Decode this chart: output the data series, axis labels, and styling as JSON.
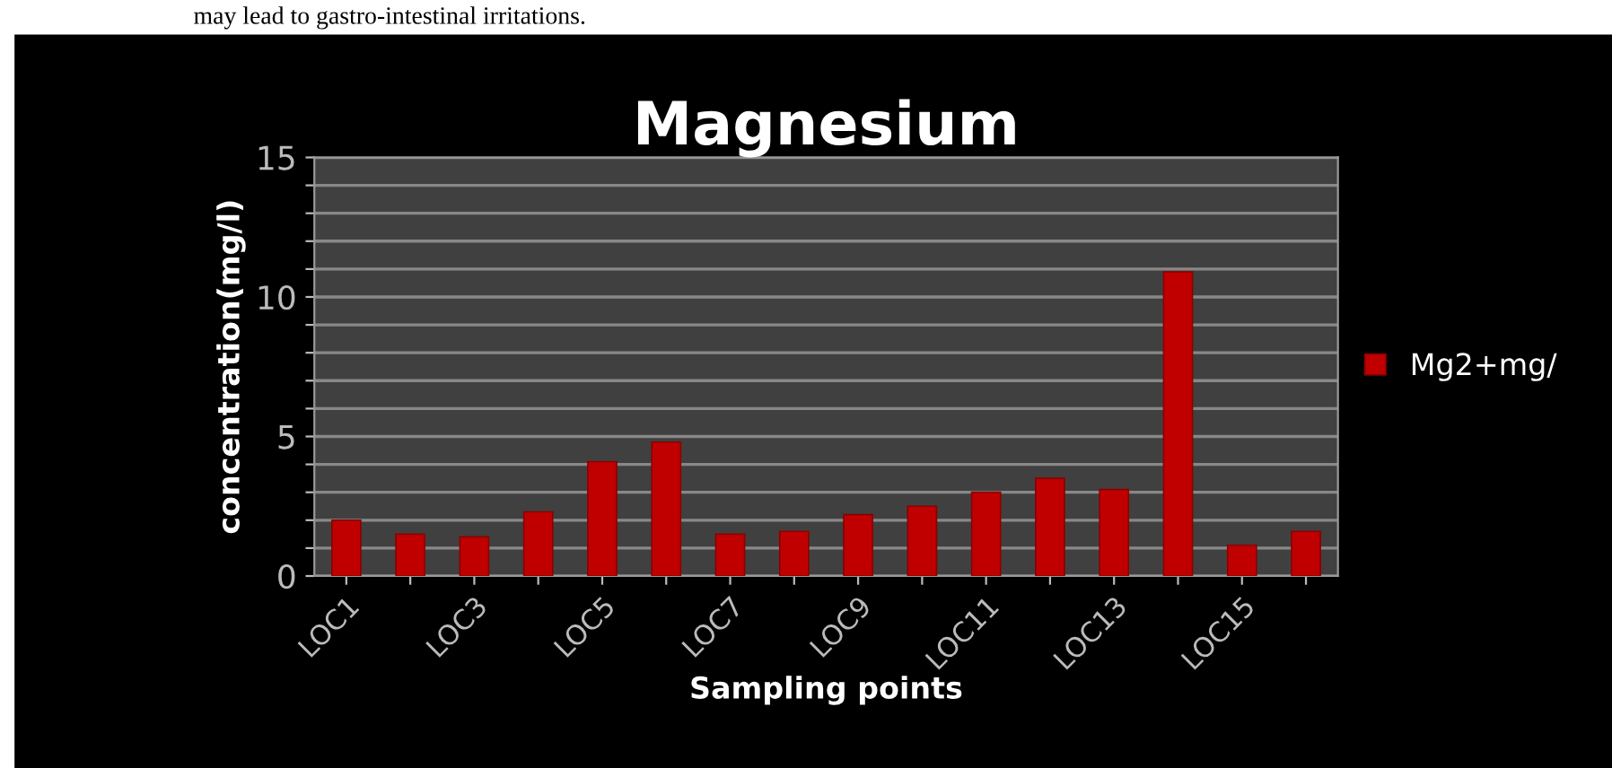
{
  "chart_data": {
    "type": "bar",
    "title": "Magnesium",
    "xlabel": "Sampling points",
    "ylabel": "concentration(mg/l)",
    "annotations": [
      "may lead to gastro-intestinal irritations."
    ],
    "categories": [
      "LOC1",
      null,
      "LOC3",
      null,
      "LOC5",
      null,
      "LOC7",
      null,
      "LOC9",
      null,
      "LOC11",
      null,
      "LOC13",
      null,
      "LOC15",
      null
    ],
    "series": [
      {
        "name": "Mg2+mg/",
        "color": "#c00000",
        "values": [
          2.0,
          1.5,
          1.4,
          2.3,
          4.1,
          4.8,
          1.5,
          1.6,
          2.2,
          2.5,
          3.0,
          3.5,
          3.1,
          10.9,
          1.1,
          1.6
        ]
      }
    ],
    "ylim": [
      0,
      15
    ],
    "yticks": [
      0,
      {
        "value": 1,
        "label": null
      },
      {
        "value": 2,
        "label": null
      },
      {
        "value": 3,
        "label": null
      },
      {
        "value": 4,
        "label": null
      },
      5,
      {
        "value": 6,
        "label": null
      },
      {
        "value": 7,
        "label": null
      },
      {
        "value": 8,
        "label": null
      },
      {
        "value": 9,
        "label": null
      },
      10,
      {
        "value": 11,
        "label": null
      },
      {
        "value": 12,
        "label": null
      },
      {
        "value": 13,
        "label": null
      },
      {
        "value": 14,
        "label": null
      },
      15
    ],
    "grid": "y",
    "legend": "right"
  }
}
